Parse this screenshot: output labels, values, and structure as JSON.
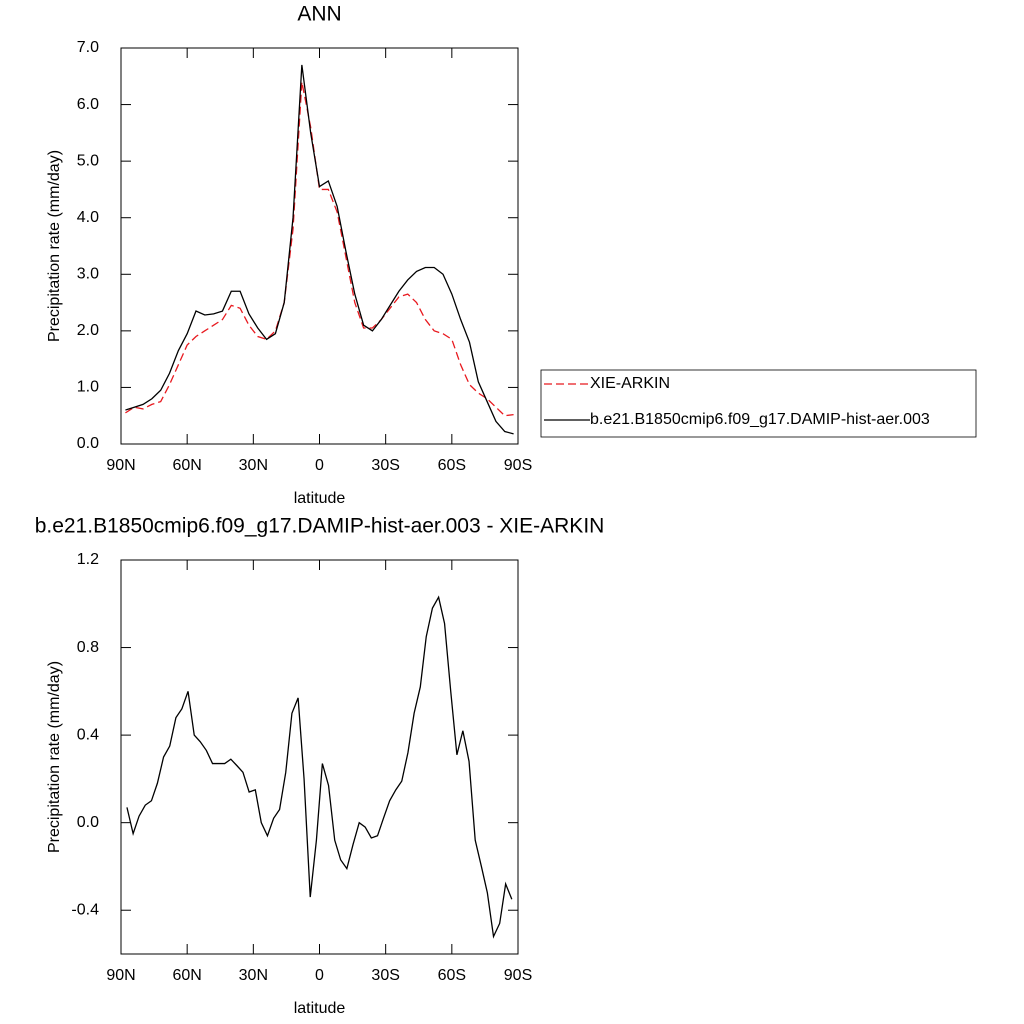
{
  "chart_data": [
    {
      "type": "line",
      "title": "ANN",
      "xlabel": "latitude",
      "ylabel": "Precipitation rate (mm/day)",
      "x": [
        88,
        84,
        80,
        76,
        72,
        68,
        64,
        60,
        56,
        52,
        48,
        44,
        40,
        36,
        32,
        28,
        24,
        20,
        16,
        12,
        8,
        4,
        0,
        -4,
        -8,
        -12,
        -16,
        -20,
        -24,
        -28,
        -32,
        -36,
        -40,
        -44,
        -48,
        -52,
        -56,
        -60,
        -64,
        -68,
        -72,
        -76,
        -80,
        -84,
        -88
      ],
      "series": [
        {
          "name": "XIE-ARKIN",
          "color": "#e8191f",
          "linestyle": "dashed",
          "values": [
            0.55,
            0.65,
            0.62,
            0.7,
            0.75,
            1.05,
            1.4,
            1.75,
            1.9,
            2.0,
            2.1,
            2.2,
            2.45,
            2.4,
            2.1,
            1.9,
            1.85,
            2.0,
            2.5,
            3.8,
            6.4,
            5.6,
            4.5,
            4.5,
            4.1,
            3.3,
            2.5,
            2.05,
            2.05,
            2.2,
            2.4,
            2.6,
            2.65,
            2.5,
            2.2,
            2.0,
            1.95,
            1.85,
            1.4,
            1.05,
            0.9,
            0.8,
            0.65,
            0.5,
            0.52
          ]
        },
        {
          "name": "b.e21.B1850cmip6.f09_g17.DAMIP-hist-aer.003",
          "color": "#000000",
          "linestyle": "solid",
          "values": [
            0.6,
            0.65,
            0.7,
            0.8,
            0.95,
            1.25,
            1.65,
            1.95,
            2.35,
            2.28,
            2.3,
            2.35,
            2.7,
            2.7,
            2.3,
            2.05,
            1.85,
            1.95,
            2.5,
            4.0,
            6.7,
            5.5,
            4.55,
            4.65,
            4.2,
            3.4,
            2.65,
            2.1,
            2.0,
            2.2,
            2.45,
            2.7,
            2.9,
            3.05,
            3.12,
            3.12,
            3.0,
            2.65,
            2.2,
            1.8,
            1.1,
            0.75,
            0.4,
            0.22,
            0.18
          ]
        }
      ],
      "xlim": [
        90,
        -90
      ],
      "xticks": [
        {
          "value": 90,
          "label": "90N"
        },
        {
          "value": 60,
          "label": "60N"
        },
        {
          "value": 30,
          "label": "30N"
        },
        0,
        {
          "value": -30,
          "label": "30S"
        },
        {
          "value": -60,
          "label": "60S"
        },
        {
          "value": -90,
          "label": "90S"
        }
      ],
      "ylim": [
        0,
        7
      ],
      "yticks": [
        {
          "value": 0,
          "label": "0.0"
        },
        {
          "value": 1,
          "label": "1.0"
        },
        {
          "value": 2,
          "label": "2.0"
        },
        {
          "value": 3,
          "label": "3.0"
        },
        {
          "value": 4,
          "label": "4.0"
        },
        {
          "value": 5,
          "label": "5.0"
        },
        {
          "value": 6,
          "label": "6.0"
        },
        {
          "value": 7,
          "label": "7.0"
        }
      ],
      "legend": "right"
    },
    {
      "type": "line",
      "title": "b.e21.B1850cmip6.f09_g17.DAMIP-hist-aer.003 - XIE-ARKIN",
      "xlabel": "latitude",
      "ylabel": "Precipitation rate (mm/day)",
      "x": [
        87.3,
        84.5,
        81.8,
        79.0,
        76.2,
        73.5,
        70.7,
        67.9,
        65.1,
        62.4,
        59.6,
        56.8,
        54.1,
        51.3,
        48.5,
        45.8,
        43.0,
        40.2,
        37.4,
        34.7,
        31.9,
        29.1,
        26.4,
        23.6,
        20.8,
        18.1,
        15.3,
        12.5,
        9.7,
        7.0,
        4.2,
        1.4,
        -1.3,
        -4.1,
        -6.9,
        -9.6,
        -12.4,
        -15.2,
        -18.0,
        -20.7,
        -23.5,
        -26.3,
        -29.0,
        -31.8,
        -34.6,
        -37.3,
        -40.1,
        -42.9,
        -45.7,
        -48.4,
        -51.2,
        -54.0,
        -56.7,
        -59.5,
        -62.3,
        -65.0,
        -67.8,
        -70.6,
        -73.4,
        -76.1,
        -78.9,
        -81.7,
        -84.4,
        -87.2
      ],
      "series": [
        {
          "color": "#000000",
          "linestyle": "solid",
          "values": [
            0.07,
            -0.05,
            0.03,
            0.08,
            0.1,
            0.18,
            0.3,
            0.35,
            0.48,
            0.52,
            0.6,
            0.4,
            0.37,
            0.33,
            0.27,
            0.27,
            0.27,
            0.29,
            0.26,
            0.23,
            0.14,
            0.15,
            0.0,
            -0.06,
            0.02,
            0.06,
            0.23,
            0.5,
            0.57,
            0.2,
            -0.34,
            -0.08,
            0.27,
            0.17,
            -0.08,
            -0.17,
            -0.21,
            -0.1,
            0.0,
            -0.02,
            -0.07,
            -0.06,
            0.02,
            0.1,
            0.15,
            0.19,
            0.32,
            0.5,
            0.62,
            0.85,
            0.98,
            1.03,
            0.91,
            0.6,
            0.31,
            0.42,
            0.28,
            -0.08,
            -0.2,
            -0.32,
            -0.52,
            -0.46,
            -0.28,
            -0.35
          ]
        }
      ],
      "xlim": [
        90,
        -90
      ],
      "xticks": [
        {
          "value": 90,
          "label": "90N"
        },
        {
          "value": 60,
          "label": "60N"
        },
        {
          "value": 30,
          "label": "30N"
        },
        0,
        {
          "value": -30,
          "label": "30S"
        },
        {
          "value": -60,
          "label": "60S"
        },
        {
          "value": -90,
          "label": "90S"
        }
      ],
      "ylim": [
        -0.6,
        1.2
      ],
      "yticks": [
        -0.4,
        {
          "value": 0,
          "label": "0.0"
        },
        0.4,
        0.8,
        1.2
      ]
    }
  ]
}
